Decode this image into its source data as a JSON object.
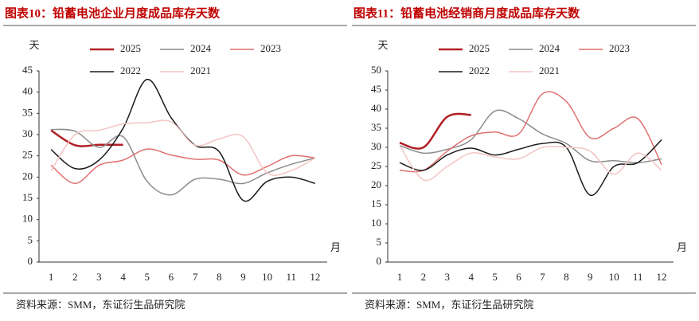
{
  "chart_data": [
    {
      "type": "line",
      "title": "图表10：铅蓄电池企业月度成品库存天数",
      "y_unit": "天",
      "x_label": "月",
      "categories": [
        "1",
        "2",
        "3",
        "4",
        "5",
        "6",
        "7",
        "8",
        "9",
        "10",
        "11",
        "12"
      ],
      "ylim": [
        0,
        45
      ],
      "yticks": [
        0,
        5,
        10,
        15,
        20,
        25,
        30,
        35,
        40,
        45
      ],
      "series": [
        {
          "name": "2025",
          "color": "#b01f24",
          "values": [
            31,
            27.5,
            27.6,
            27.6,
            null,
            null,
            null,
            null,
            null,
            null,
            null,
            null
          ]
        },
        {
          "name": "2024",
          "color": "#8c8c8c",
          "values": [
            31.2,
            30.8,
            27,
            29.5,
            19,
            15.8,
            19.5,
            19.5,
            18.5,
            21,
            23,
            24.5
          ]
        },
        {
          "name": "2023",
          "color": "#e07070",
          "values": [
            22.8,
            18.5,
            22.8,
            24,
            26.6,
            25.2,
            24.2,
            24,
            20.5,
            22.5,
            25,
            24.5
          ]
        },
        {
          "name": "2022",
          "color": "#1a1a1a",
          "values": [
            26.5,
            22,
            24,
            31.5,
            43,
            34,
            27.5,
            26,
            14.5,
            19,
            20,
            18.5
          ]
        },
        {
          "name": "2021",
          "color": "#f4c4c4",
          "values": [
            21.5,
            30,
            31,
            32.5,
            32.8,
            33,
            27.5,
            29,
            29.5,
            21,
            21.5,
            24.5
          ]
        }
      ],
      "source": "资料来源：SMM，东证衍生品研究院"
    },
    {
      "type": "line",
      "title": "图表11：铅蓄电池经销商月度成品库存天数",
      "y_unit": "天",
      "x_label": "月",
      "categories": [
        "1",
        "2",
        "3",
        "4",
        "5",
        "6",
        "7",
        "8",
        "9",
        "10",
        "11",
        "12"
      ],
      "ylim": [
        0,
        50
      ],
      "yticks": [
        0,
        5,
        10,
        15,
        20,
        25,
        30,
        35,
        40,
        45,
        50
      ],
      "series": [
        {
          "name": "2025",
          "color": "#b01f24",
          "values": [
            31.2,
            30,
            38,
            38.5,
            null,
            null,
            null,
            null,
            null,
            null,
            null,
            null
          ]
        },
        {
          "name": "2024",
          "color": "#8c8c8c",
          "values": [
            30.5,
            28.5,
            29.5,
            32,
            39.5,
            37.5,
            33.5,
            31,
            26.5,
            26.5,
            26,
            27
          ]
        },
        {
          "name": "2023",
          "color": "#e07070",
          "values": [
            24,
            24,
            29,
            33,
            34,
            33.5,
            44,
            42,
            32.5,
            35,
            37.5,
            25.5
          ]
        },
        {
          "name": "2022",
          "color": "#1a1a1a",
          "values": [
            26,
            24,
            28,
            29.8,
            28,
            29.5,
            31,
            30,
            17.5,
            25,
            26,
            32
          ]
        },
        {
          "name": "2021",
          "color": "#f4c4c4",
          "values": [
            30.5,
            21.5,
            25,
            28.5,
            27.5,
            27,
            30,
            30,
            29,
            23,
            28.5,
            24
          ]
        }
      ],
      "source": "资料来源：SMM，东证衍生品研究院"
    }
  ]
}
